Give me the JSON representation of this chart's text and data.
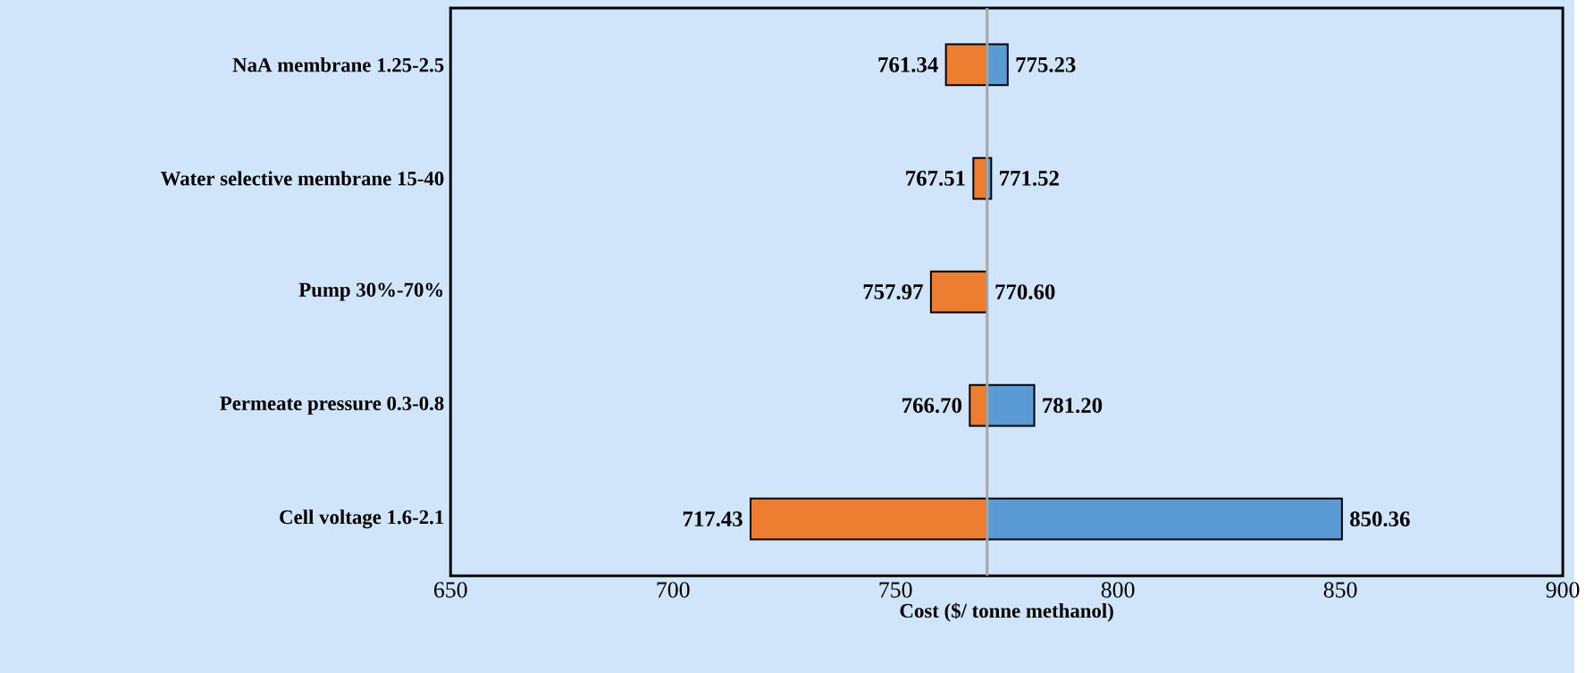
{
  "chart_data": {
    "type": "bar",
    "orientation": "horizontal",
    "xlabel": "Cost ($/ tonne methanol)",
    "categories": [
      "NaA membrane 1.25-2.5",
      "Water selective membrane 15-40",
      "Pump 30%-70%",
      "Permeate pressure 0.3-0.8",
      "Cell voltage 1.6-2.1"
    ],
    "series": [
      {
        "color": "#ed7d31",
        "base": [
          761.34,
          767.51,
          757.97,
          766.7,
          717.43
        ],
        "values": [
          9.26,
          3.09,
          12.63,
          3.9,
          53.17
        ]
      },
      {
        "color": "#5b9bd5",
        "base": [
          770.6,
          770.6,
          null,
          770.6,
          770.6
        ],
        "values": [
          4.63,
          0.92,
          null,
          10.6,
          79.76
        ]
      }
    ],
    "annotations": [
      {
        "text": "761.34",
        "x": 761.34,
        "y": "NaA membrane 1.25-2.5"
      },
      {
        "text": "775.23",
        "x": 775.23,
        "y": "NaA membrane 1.25-2.5"
      },
      {
        "text": "767.51",
        "x": 767.51,
        "y": "Water selective membrane 15-40"
      },
      {
        "text": "771.52",
        "x": 771.52,
        "y": "Water selective membrane 15-40"
      },
      {
        "text": "757.97",
        "x": 757.97,
        "y": "Pump 30%-70%"
      },
      {
        "text": "770.60",
        "x": 770.6,
        "y": "Pump 30%-70%"
      },
      {
        "text": "766.70",
        "x": 766.7,
        "y": "Permeate pressure 0.3-0.8"
      },
      {
        "text": "781.20",
        "x": 781.2,
        "y": "Permeate pressure 0.3-0.8"
      },
      {
        "text": "717.43",
        "x": 717.43,
        "y": "Cell voltage 1.6-2.1"
      },
      {
        "text": "850.36",
        "x": 850.36,
        "y": "Cell voltage 1.6-2.1"
      }
    ],
    "xlim": [
      650,
      900
    ],
    "xticks": [
      650,
      700,
      750,
      800,
      850,
      900
    ],
    "ref_lines": [
      {
        "axis": "x",
        "value": 770.6,
        "color": "#a6a6a6"
      }
    ]
  }
}
